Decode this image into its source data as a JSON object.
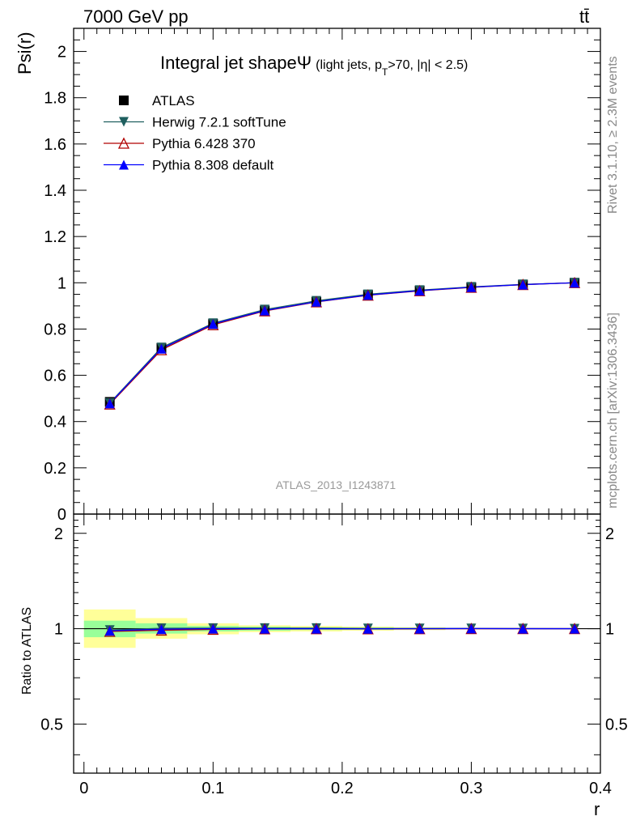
{
  "header": {
    "left": "7000 GeV pp",
    "right": "tt̄"
  },
  "side_labels": {
    "rivet": "Rivet 3.1.10, ≥ 2.3M events",
    "mcplots": "mcplots.cern.ch [arXiv:1306.3436]"
  },
  "chart_data": {
    "type": "line",
    "title_main": "Integral jet shape",
    "title_symbol": "Ψ",
    "title_sub_prefix": "(light jets, p",
    "title_sub_subscript": "T",
    "title_sub_suffix": ">70, |η| < 2.5)",
    "watermark": "ATLAS_2013_I1243871",
    "ylabel": "Psi(r)",
    "ratio_ylabel": "Ratio to ATLAS",
    "xlabel": "r",
    "xlim": [
      -0.008,
      0.4
    ],
    "ylim": [
      0,
      2.1
    ],
    "ratio_ylim": [
      0.35,
      2.3
    ],
    "grid": false,
    "legend_position": "top-left",
    "x_ticks": [
      "0",
      "0.1",
      "0.2",
      "0.3",
      "0.4"
    ],
    "x_tick_values": [
      0,
      0.1,
      0.2,
      0.3,
      0.4
    ],
    "y_ticks": [
      "0",
      "0.2",
      "0.4",
      "0.6",
      "0.8",
      "1",
      "1.2",
      "1.4",
      "1.6",
      "1.8",
      "2"
    ],
    "y_tick_values": [
      0,
      0.2,
      0.4,
      0.6,
      0.8,
      1.0,
      1.2,
      1.4,
      1.6,
      1.8,
      2.0
    ],
    "ratio_ticks": [
      "0.5",
      "1",
      "2"
    ],
    "ratio_tick_values": [
      0.5,
      1,
      2
    ],
    "x": [
      0.02,
      0.06,
      0.1,
      0.14,
      0.18,
      0.22,
      0.26,
      0.3,
      0.34,
      0.38
    ],
    "bin_edges": [
      0.0,
      0.04,
      0.08,
      0.12,
      0.16,
      0.2,
      0.24,
      0.28,
      0.32,
      0.36,
      0.4
    ],
    "series": [
      {
        "name": "ATLAS",
        "marker": "square",
        "color": "#000000",
        "values": [
          0.485,
          0.718,
          0.822,
          0.88,
          0.918,
          0.948,
          0.966,
          0.98,
          0.992,
          1.0
        ]
      },
      {
        "name": "Herwig 7.2.1 softTune",
        "marker": "triangle-down",
        "color": "#1f5f5f",
        "values": [
          0.48,
          0.72,
          0.825,
          0.884,
          0.922,
          0.95,
          0.968,
          0.982,
          0.993,
          1.0
        ]
      },
      {
        "name": "Pythia 6.428 370",
        "marker": "triangle-up-open",
        "color": "#b00000",
        "values": [
          0.475,
          0.71,
          0.818,
          0.878,
          0.917,
          0.946,
          0.965,
          0.98,
          0.992,
          1.0
        ]
      },
      {
        "name": "Pythia 8.308 default",
        "marker": "triangle-up",
        "color": "#0000ff",
        "values": [
          0.478,
          0.715,
          0.822,
          0.88,
          0.918,
          0.947,
          0.966,
          0.981,
          0.992,
          1.0
        ]
      }
    ],
    "ratio_series": [
      {
        "name": "Herwig 7.2.1 softTune",
        "values": [
          0.99,
          1.003,
          1.004,
          1.004,
          1.004,
          1.002,
          1.002,
          1.002,
          1.001,
          1.0
        ]
      },
      {
        "name": "Pythia 6.428 370",
        "values": [
          0.98,
          0.989,
          0.995,
          0.998,
          0.999,
          0.998,
          0.999,
          1.0,
          1.0,
          1.0
        ]
      },
      {
        "name": "Pythia 8.308 default",
        "values": [
          0.985,
          0.996,
          1.0,
          1.0,
          1.0,
          0.999,
          1.0,
          1.001,
          1.0,
          1.0
        ]
      }
    ],
    "uncertainty_bands": {
      "yellow": [
        [
          0.87,
          1.15
        ],
        [
          0.93,
          1.08
        ],
        [
          0.96,
          1.04
        ],
        [
          0.975,
          1.025
        ],
        [
          0.98,
          1.02
        ],
        [
          0.985,
          1.015
        ],
        [
          0.99,
          1.01
        ],
        [
          1.0,
          1.0
        ],
        [
          1.0,
          1.0
        ],
        [
          1.0,
          1.0
        ]
      ],
      "green": [
        [
          0.94,
          1.06
        ],
        [
          0.965,
          1.04
        ],
        [
          0.98,
          1.02
        ],
        [
          0.985,
          1.015
        ],
        [
          0.99,
          1.01
        ],
        [
          0.992,
          1.008
        ],
        [
          0.995,
          1.005
        ],
        [
          1.0,
          1.0
        ],
        [
          1.0,
          1.0
        ],
        [
          1.0,
          1.0
        ]
      ]
    },
    "colors": {
      "band_yellow": "#ffff99",
      "band_green": "#99ff99"
    }
  }
}
